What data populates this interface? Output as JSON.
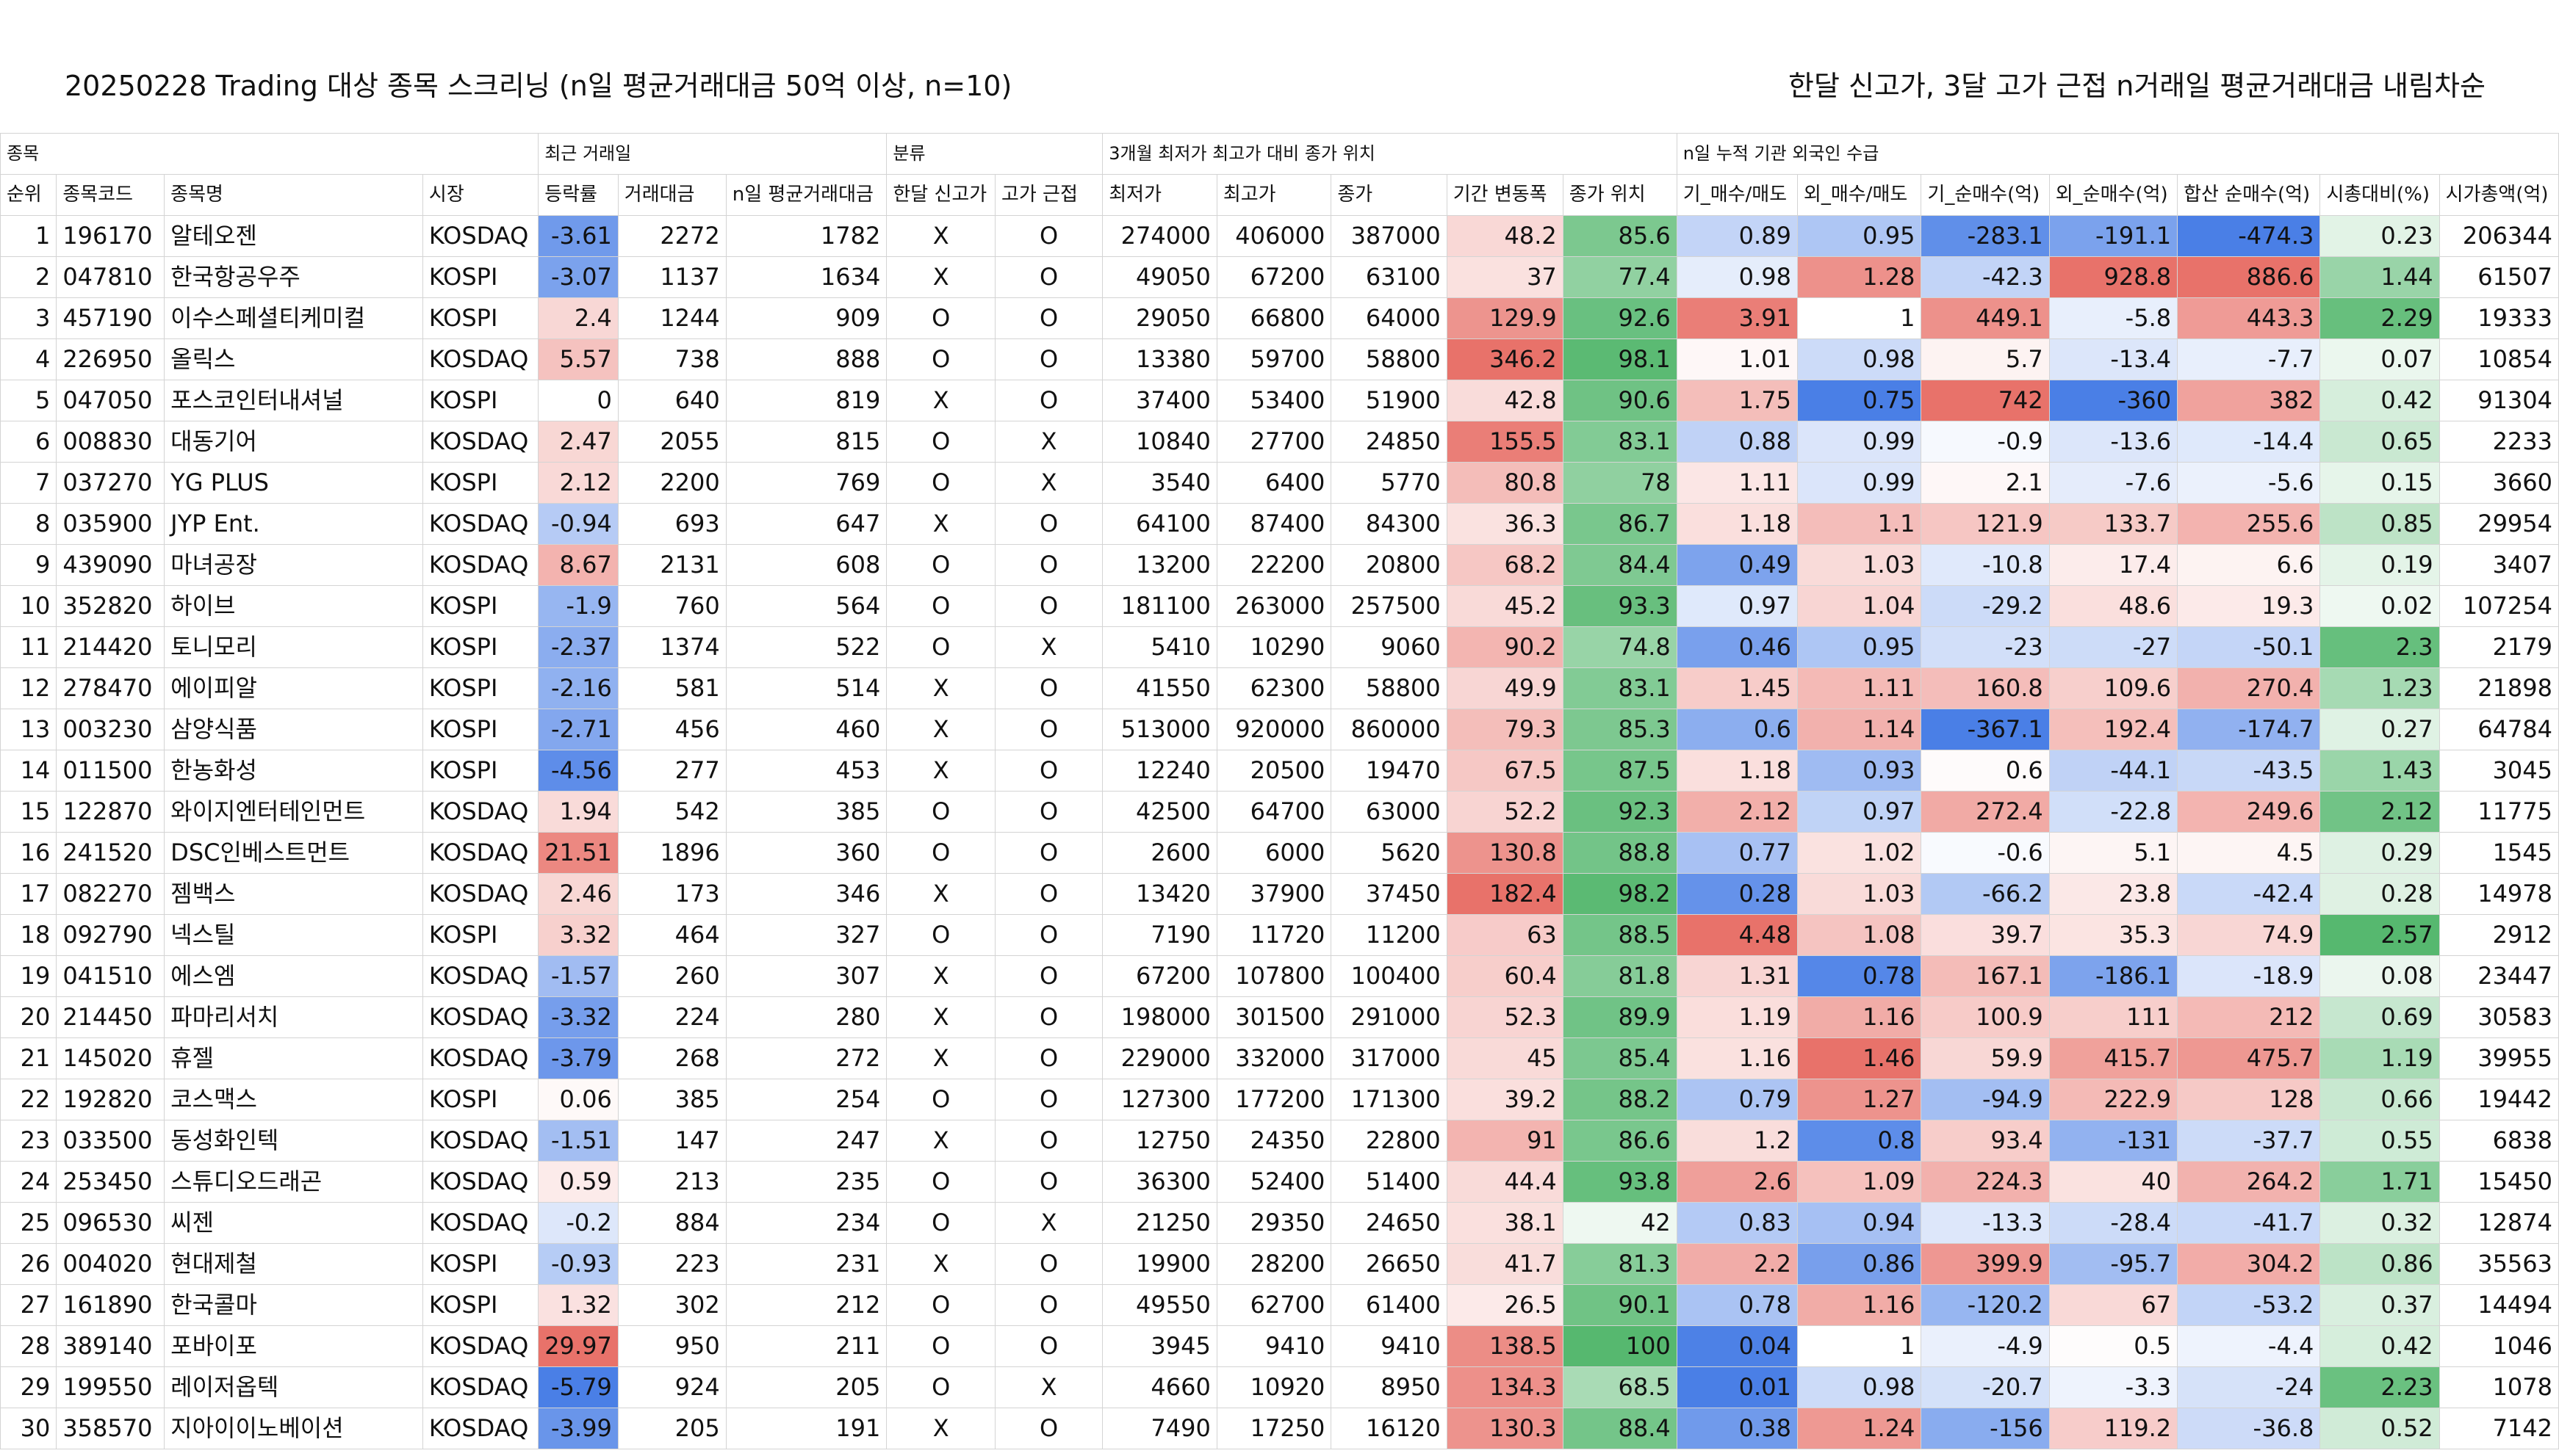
{
  "title_left": "20250228 Trading 대상 종목 스크리닝 (n일 평균거래대금 50억 이상, n=10)",
  "title_right": "한달 신고가, 3달 고가 근접 n거래일 평균거래대금 내림차순",
  "groups": [
    {
      "label": "종목",
      "span": 4
    },
    {
      "label": "최근 거래일",
      "span": 3
    },
    {
      "label": "분류",
      "span": 2
    },
    {
      "label": "3개월 최저가 최고가 대비 종가 위치",
      "span": 5
    },
    {
      "label": "n일 누적 기관 외국인 수급",
      "span": 8
    }
  ],
  "columns": [
    "순위",
    "종목코드",
    "종목명",
    "시장",
    "등락률",
    "거래대금",
    "n일 평균거래대금",
    "한달 신고가",
    "고가 근접",
    "최저가",
    "최고가",
    "종가",
    "기간 변동폭",
    "종가 위치",
    "기_매수/매도",
    "외_매수/매도",
    "기_순매수(억)",
    "외_순매수(억)",
    "합산 순매수(억)",
    "시총대비(%)",
    "시가총액(억)"
  ],
  "colors": {
    "red": "#e8726a",
    "blue": "#4a7fe6",
    "green": "#56b86f",
    "white": "#ffffff"
  },
  "rows": [
    [
      1,
      "196170",
      "알테오젠",
      "KOSDAQ",
      -3.61,
      2272,
      1782,
      "X",
      "O",
      274000,
      406000,
      387000,
      48.2,
      85.6,
      0.89,
      0.95,
      -283.1,
      -191.1,
      -474.3,
      0.23,
      206344
    ],
    [
      2,
      "047810",
      "한국항공우주",
      "KOSPI",
      -3.07,
      1137,
      1634,
      "X",
      "O",
      49050,
      67200,
      63100,
      37,
      77.4,
      0.98,
      1.28,
      -42.3,
      928.8,
      886.6,
      1.44,
      61507
    ],
    [
      3,
      "457190",
      "이수스페셜티케미컬",
      "KOSPI",
      2.4,
      1244,
      909,
      "O",
      "O",
      29050,
      66800,
      64000,
      129.9,
      92.6,
      3.91,
      1,
      449.1,
      -5.8,
      443.3,
      2.29,
      19333
    ],
    [
      4,
      "226950",
      "올릭스",
      "KOSDAQ",
      5.57,
      738,
      888,
      "O",
      "O",
      13380,
      59700,
      58800,
      346.2,
      98.1,
      1.01,
      0.98,
      5.7,
      -13.4,
      -7.7,
      0.07,
      10854
    ],
    [
      5,
      "047050",
      "포스코인터내셔널",
      "KOSPI",
      0,
      640,
      819,
      "X",
      "O",
      37400,
      53400,
      51900,
      42.8,
      90.6,
      1.75,
      0.75,
      742,
      -360,
      382,
      0.42,
      91304
    ],
    [
      6,
      "008830",
      "대동기어",
      "KOSDAQ",
      2.47,
      2055,
      815,
      "O",
      "X",
      10840,
      27700,
      24850,
      155.5,
      83.1,
      0.88,
      0.99,
      -0.9,
      -13.6,
      -14.4,
      0.65,
      2233
    ],
    [
      7,
      "037270",
      "YG PLUS",
      "KOSPI",
      2.12,
      2200,
      769,
      "O",
      "X",
      3540,
      6400,
      5770,
      80.8,
      78,
      1.11,
      0.99,
      2.1,
      -7.6,
      -5.6,
      0.15,
      3660
    ],
    [
      8,
      "035900",
      "JYP Ent.",
      "KOSDAQ",
      -0.94,
      693,
      647,
      "X",
      "O",
      64100,
      87400,
      84300,
      36.3,
      86.7,
      1.18,
      1.1,
      121.9,
      133.7,
      255.6,
      0.85,
      29954
    ],
    [
      9,
      "439090",
      "마녀공장",
      "KOSDAQ",
      8.67,
      2131,
      608,
      "O",
      "O",
      13200,
      22200,
      20800,
      68.2,
      84.4,
      0.49,
      1.03,
      -10.8,
      17.4,
      6.6,
      0.19,
      3407
    ],
    [
      10,
      "352820",
      "하이브",
      "KOSPI",
      -1.9,
      760,
      564,
      "O",
      "O",
      181100,
      263000,
      257500,
      45.2,
      93.3,
      0.97,
      1.04,
      -29.2,
      48.6,
      19.3,
      0.02,
      107254
    ],
    [
      11,
      "214420",
      "토니모리",
      "KOSPI",
      -2.37,
      1374,
      522,
      "O",
      "X",
      5410,
      10290,
      9060,
      90.2,
      74.8,
      0.46,
      0.95,
      -23,
      -27,
      -50.1,
      2.3,
      2179
    ],
    [
      12,
      "278470",
      "에이피알",
      "KOSPI",
      -2.16,
      581,
      514,
      "X",
      "O",
      41550,
      62300,
      58800,
      49.9,
      83.1,
      1.45,
      1.11,
      160.8,
      109.6,
      270.4,
      1.23,
      21898
    ],
    [
      13,
      "003230",
      "삼양식품",
      "KOSPI",
      -2.71,
      456,
      460,
      "X",
      "O",
      513000,
      920000,
      860000,
      79.3,
      85.3,
      0.6,
      1.14,
      -367.1,
      192.4,
      -174.7,
      0.27,
      64784
    ],
    [
      14,
      "011500",
      "한농화성",
      "KOSPI",
      -4.56,
      277,
      453,
      "X",
      "O",
      12240,
      20500,
      19470,
      67.5,
      87.5,
      1.18,
      0.93,
      0.6,
      -44.1,
      -43.5,
      1.43,
      3045
    ],
    [
      15,
      "122870",
      "와이지엔터테인먼트",
      "KOSDAQ",
      1.94,
      542,
      385,
      "O",
      "O",
      42500,
      64700,
      63000,
      52.2,
      92.3,
      2.12,
      0.97,
      272.4,
      -22.8,
      249.6,
      2.12,
      11775
    ],
    [
      16,
      "241520",
      "DSC인베스트먼트",
      "KOSDAQ",
      21.51,
      1896,
      360,
      "O",
      "O",
      2600,
      6000,
      5620,
      130.8,
      88.8,
      0.77,
      1.02,
      -0.6,
      5.1,
      4.5,
      0.29,
      1545
    ],
    [
      17,
      "082270",
      "젬백스",
      "KOSDAQ",
      2.46,
      173,
      346,
      "X",
      "O",
      13420,
      37900,
      37450,
      182.4,
      98.2,
      0.28,
      1.03,
      -66.2,
      23.8,
      -42.4,
      0.28,
      14978
    ],
    [
      18,
      "092790",
      "넥스틸",
      "KOSPI",
      3.32,
      464,
      327,
      "O",
      "O",
      7190,
      11720,
      11200,
      63,
      88.5,
      4.48,
      1.08,
      39.7,
      35.3,
      74.9,
      2.57,
      2912
    ],
    [
      19,
      "041510",
      "에스엠",
      "KOSDAQ",
      -1.57,
      260,
      307,
      "X",
      "O",
      67200,
      107800,
      100400,
      60.4,
      81.8,
      1.31,
      0.78,
      167.1,
      -186.1,
      -18.9,
      0.08,
      23447
    ],
    [
      20,
      "214450",
      "파마리서치",
      "KOSDAQ",
      -3.32,
      224,
      280,
      "X",
      "O",
      198000,
      301500,
      291000,
      52.3,
      89.9,
      1.19,
      1.16,
      100.9,
      111,
      212,
      0.69,
      30583
    ],
    [
      21,
      "145020",
      "휴젤",
      "KOSDAQ",
      -3.79,
      268,
      272,
      "X",
      "O",
      229000,
      332000,
      317000,
      45,
      85.4,
      1.16,
      1.46,
      59.9,
      415.7,
      475.7,
      1.19,
      39955
    ],
    [
      22,
      "192820",
      "코스맥스",
      "KOSPI",
      0.06,
      385,
      254,
      "O",
      "O",
      127300,
      177200,
      171300,
      39.2,
      88.2,
      0.79,
      1.27,
      -94.9,
      222.9,
      128,
      0.66,
      19442
    ],
    [
      23,
      "033500",
      "동성화인텍",
      "KOSDAQ",
      -1.51,
      147,
      247,
      "X",
      "O",
      12750,
      24350,
      22800,
      91,
      86.6,
      1.2,
      0.8,
      93.4,
      -131,
      -37.7,
      0.55,
      6838
    ],
    [
      24,
      "253450",
      "스튜디오드래곤",
      "KOSDAQ",
      0.59,
      213,
      235,
      "O",
      "O",
      36300,
      52400,
      51400,
      44.4,
      93.8,
      2.6,
      1.09,
      224.3,
      40,
      264.2,
      1.71,
      15450
    ],
    [
      25,
      "096530",
      "씨젠",
      "KOSDAQ",
      -0.2,
      884,
      234,
      "O",
      "X",
      21250,
      29350,
      24650,
      38.1,
      42,
      0.83,
      0.94,
      -13.3,
      -28.4,
      -41.7,
      0.32,
      12874
    ],
    [
      26,
      "004020",
      "현대제철",
      "KOSPI",
      -0.93,
      223,
      231,
      "X",
      "O",
      19900,
      28200,
      26650,
      41.7,
      81.3,
      2.2,
      0.86,
      399.9,
      -95.7,
      304.2,
      0.86,
      35563
    ],
    [
      27,
      "161890",
      "한국콜마",
      "KOSPI",
      1.32,
      302,
      212,
      "O",
      "O",
      49550,
      62700,
      61400,
      26.5,
      90.1,
      0.78,
      1.16,
      -120.2,
      67,
      -53.2,
      0.37,
      14494
    ],
    [
      28,
      "389140",
      "포바이포",
      "KOSDAQ",
      29.97,
      950,
      211,
      "O",
      "O",
      3945,
      9410,
      9410,
      138.5,
      100,
      0.04,
      1,
      -4.9,
      0.5,
      -4.4,
      0.42,
      1046
    ],
    [
      29,
      "199550",
      "레이저옵텍",
      "KOSDAQ",
      -5.79,
      924,
      205,
      "O",
      "X",
      4660,
      10920,
      8950,
      134.3,
      68.5,
      0.01,
      0.98,
      -20.7,
      -3.3,
      -24,
      2.23,
      1078
    ],
    [
      30,
      "358570",
      "지아이이노베이션",
      "KOSDAQ",
      -3.99,
      205,
      191,
      "X",
      "O",
      7490,
      17250,
      16120,
      130.3,
      88.4,
      0.38,
      1.24,
      -156,
      119.2,
      -36.8,
      0.52,
      7142
    ]
  ]
}
